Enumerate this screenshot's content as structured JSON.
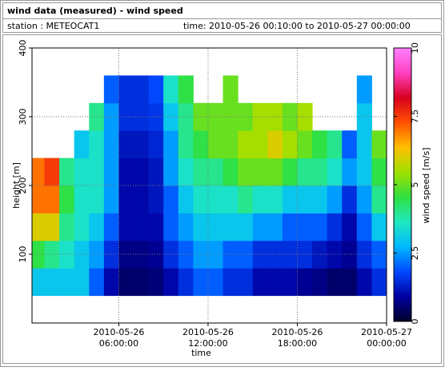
{
  "header": {
    "title": "wind data (measured) - wind speed",
    "station": "station : METEOCAT1",
    "time": "time: 2010-05-26 00:10:00 to 2010-05-27 00:00:00"
  },
  "chart_data": {
    "type": "heatmap",
    "xlabel": "time",
    "ylabel": "height [m]",
    "colorbar_label": "wind speed [m/s]",
    "x": [
      "2010-05-26 00:30:00",
      "2010-05-26 01:30:00",
      "2010-05-26 02:30:00",
      "2010-05-26 03:30:00",
      "2010-05-26 04:30:00",
      "2010-05-26 05:30:00",
      "2010-05-26 06:30:00",
      "2010-05-26 07:30:00",
      "2010-05-26 08:30:00",
      "2010-05-26 09:30:00",
      "2010-05-26 10:30:00",
      "2010-05-26 11:30:00",
      "2010-05-26 12:30:00",
      "2010-05-26 13:30:00",
      "2010-05-26 14:30:00",
      "2010-05-26 15:30:00",
      "2010-05-26 16:30:00",
      "2010-05-26 17:30:00",
      "2010-05-26 18:30:00",
      "2010-05-26 19:30:00",
      "2010-05-26 20:30:00",
      "2010-05-26 21:30:00",
      "2010-05-26 22:30:00",
      "2010-05-26 23:30:00"
    ],
    "y": [
      60,
      100,
      140,
      180,
      220,
      260,
      300,
      340
    ],
    "values": [
      [
        3,
        4.5,
        6,
        7,
        7,
        null,
        null,
        null
      ],
      [
        3,
        4,
        6,
        7,
        7.5,
        null,
        null,
        null
      ],
      [
        3,
        3.5,
        4,
        4.5,
        4,
        null,
        null,
        null
      ],
      [
        3,
        3,
        3.5,
        3.5,
        3.5,
        3,
        null,
        null
      ],
      [
        2,
        2.5,
        3,
        3.5,
        3.5,
        3.5,
        4,
        null
      ],
      [
        1,
        1.5,
        2,
        2.5,
        2.5,
        2.5,
        2.5,
        2
      ],
      [
        0.5,
        0.7,
        1,
        1,
        1,
        1.2,
        1.5,
        1.5
      ],
      [
        0.5,
        0.7,
        1,
        1,
        1,
        1.2,
        1.5,
        1.5
      ],
      [
        0.6,
        0.8,
        1,
        1.2,
        1.2,
        1.4,
        1.6,
        1.8
      ],
      [
        1,
        1.5,
        2,
        2,
        2.5,
        2.5,
        3,
        3.5
      ],
      [
        1.5,
        2,
        2.5,
        3,
        3.5,
        4,
        4,
        4.5
      ],
      [
        2,
        2.5,
        3,
        3.5,
        4,
        4.5,
        5,
        null
      ],
      [
        2,
        2.5,
        3,
        3.5,
        4,
        5,
        5,
        null
      ],
      [
        1.5,
        2,
        3,
        3.5,
        4.5,
        5,
        5,
        5
      ],
      [
        1.5,
        2,
        3,
        4,
        5,
        5.5,
        5,
        null
      ],
      [
        1,
        1.5,
        2.5,
        3.5,
        5,
        5.5,
        5.5,
        null
      ],
      [
        1,
        1.5,
        2.5,
        3.5,
        5,
        6,
        5.5,
        null
      ],
      [
        1,
        1.5,
        2,
        3,
        4.5,
        5.5,
        5,
        null
      ],
      [
        0.8,
        1.5,
        2,
        3,
        4,
        5,
        5.5,
        null
      ],
      [
        0.7,
        1.2,
        2,
        3,
        4,
        4.5,
        null,
        null
      ],
      [
        0.5,
        1,
        1.5,
        2.5,
        3.5,
        4,
        null,
        null
      ],
      [
        0.5,
        0.8,
        1,
        1.5,
        2.5,
        2,
        null,
        null
      ],
      [
        1,
        1.5,
        2,
        2.5,
        3,
        3,
        3,
        2.5
      ],
      [
        1.5,
        2,
        3,
        4,
        4.5,
        5,
        null,
        null
      ]
    ],
    "xlim": [
      "2010-05-26 00:10:00",
      "2010-05-27 00:00:00"
    ],
    "xticks": [
      "2010-05-26 06:00:00",
      "2010-05-26 12:00:00",
      "2010-05-26 18:00:00",
      "2010-05-27 00:00:00"
    ],
    "ylim": [
      0,
      400
    ],
    "yticks": [
      100,
      200,
      300,
      400
    ],
    "clim": [
      0,
      10
    ],
    "cticks": [
      0,
      2.5,
      5,
      7.5,
      10
    ],
    "colorscale": [
      "#000028",
      "#0000a0",
      "#0048ff",
      "#00b8ff",
      "#20e8c0",
      "#30e040",
      "#a0e000",
      "#ffc000",
      "#ff5000",
      "#d80020",
      "#ff40c0",
      "#ff80ff"
    ],
    "grid": true
  }
}
